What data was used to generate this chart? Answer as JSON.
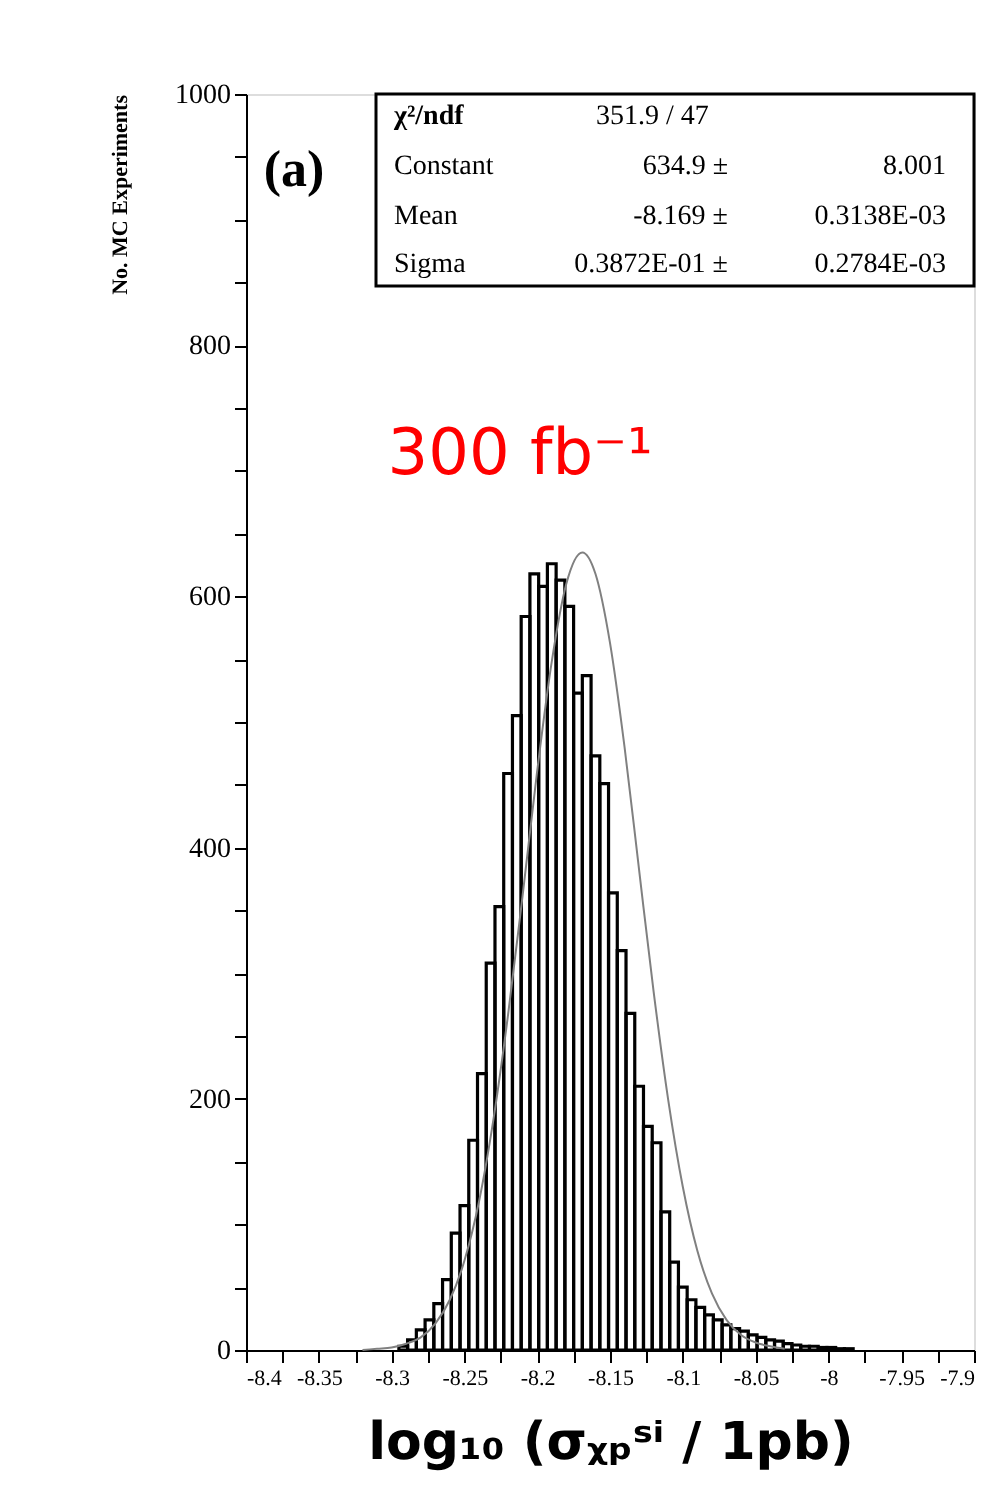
{
  "chart_data": {
    "type": "histogram",
    "xlabel": "log₁₀ (σᵪₚˢⁱ / 1pb)",
    "ylabel": "No. MC Experiments",
    "xlim": [
      -8.4,
      -7.9
    ],
    "xticks": [
      -8.4,
      {
        "value": -8.375,
        "label": null
      },
      -8.35,
      {
        "value": -8.325,
        "label": null
      },
      -8.3,
      {
        "value": -8.275,
        "label": null
      },
      -8.25,
      {
        "value": -8.225,
        "label": null
      },
      -8.2,
      {
        "value": -8.175,
        "label": null
      },
      -8.15,
      {
        "value": -8.125,
        "label": null
      },
      -8.1,
      {
        "value": -8.075,
        "label": null
      },
      -8.05,
      {
        "value": -8.025,
        "label": null
      },
      -8,
      {
        "value": -7.975,
        "label": null
      },
      -7.95,
      {
        "value": -7.925,
        "label": null
      },
      -7.9
    ],
    "ylim": [
      0,
      1000
    ],
    "yticks": [
      0,
      {
        "value": 50,
        "label": null
      },
      {
        "value": 100,
        "label": null
      },
      {
        "value": 150,
        "label": null
      },
      200,
      {
        "value": 250,
        "label": null
      },
      {
        "value": 300,
        "label": null
      },
      {
        "value": 350,
        "label": null
      },
      400,
      {
        "value": 450,
        "label": null
      },
      {
        "value": 500,
        "label": null
      },
      {
        "value": 550,
        "label": null
      },
      600,
      {
        "value": 650,
        "label": null
      },
      {
        "value": 700,
        "label": null
      },
      {
        "value": 750,
        "label": null
      },
      800,
      {
        "value": 850,
        "label": null
      },
      {
        "value": 900,
        "label": null
      },
      {
        "value": 950,
        "label": null
      },
      1000
    ],
    "grid": false,
    "series": [
      {
        "color": "#000000",
        "bins": [
          -8.295,
          -8.289,
          -8.283,
          -8.277,
          -8.271,
          -8.265,
          -8.259,
          -8.253,
          -8.247,
          -8.241,
          -8.235,
          -8.229,
          -8.223,
          -8.217,
          -8.211,
          -8.205,
          -8.199,
          -8.193,
          -8.187,
          -8.181,
          -8.175,
          -8.169,
          -8.163,
          -8.157,
          -8.151,
          -8.145,
          -8.139,
          -8.133,
          -8.127,
          -8.121,
          -8.115,
          -8.109,
          -8.103,
          -8.097,
          -8.091,
          -8.085,
          -8.079,
          -8.073,
          -8.067,
          -8.061,
          -8.055,
          -8.049,
          -8.043,
          -8.037,
          -8.031,
          -8.025,
          -8.019,
          -8.013,
          -8.007,
          -8.001,
          -7.995,
          -7.989,
          -7.983
        ],
        "values": [
          3,
          8,
          16,
          24,
          37,
          56,
          93,
          115,
          167,
          220,
          308,
          353,
          459,
          505,
          584,
          618,
          608,
          626,
          613,
          592,
          523,
          537,
          473,
          451,
          364,
          318,
          268,
          210,
          178,
          165,
          110,
          70,
          50,
          40,
          34,
          28,
          24,
          20,
          17,
          15,
          12,
          10,
          8,
          7,
          5,
          4,
          3,
          3,
          2,
          2,
          1,
          1
        ]
      },
      {
        "type": "line",
        "color": "#808080",
        "x": [
          -8.32,
          -8.31,
          -8.3,
          -8.29,
          -8.28,
          -8.27,
          -8.26,
          -8.25,
          -8.24,
          -8.23,
          -8.22,
          -8.21,
          -8.2,
          -8.19,
          -8.18,
          -8.169,
          -8.16,
          -8.15,
          -8.14,
          -8.13,
          -8.12,
          -8.11,
          -8.1,
          -8.09,
          -8.08,
          -8.07,
          -8.06,
          -8.05,
          -8.04,
          -8.03
        ],
        "values": [
          0,
          1,
          2,
          5,
          10,
          21,
          40,
          71,
          118,
          184,
          267,
          362,
          461,
          548,
          610,
          635,
          618,
          563,
          480,
          382,
          285,
          199,
          130,
          79,
          45,
          24,
          12,
          6,
          3,
          1
        ]
      }
    ],
    "annotations": [
      "(a)",
      "300 fb⁻¹",
      "χ²/ndf",
      "351.9   /   47",
      "Constant",
      "634.9 ±",
      "8.001",
      "Mean",
      "-8.169 ±",
      "0.3138E-03",
      "Sigma",
      "0.3872E-01 ±",
      "0.2784E-03"
    ]
  }
}
